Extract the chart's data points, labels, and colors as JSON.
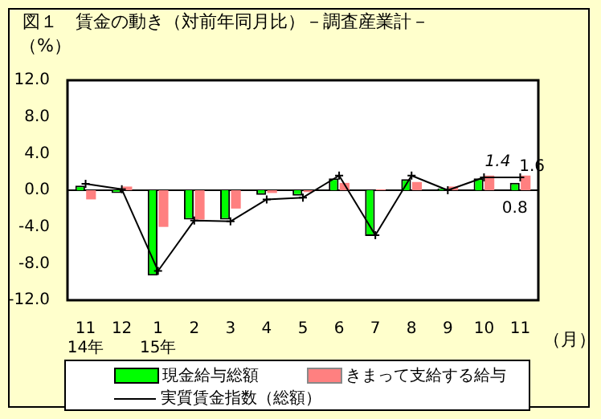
{
  "chart_data": {
    "type": "bar",
    "title": "図１　賃金の動き（対前年同月比）－調査産業計－",
    "ylabel": "（%）",
    "xlabel": "（月）",
    "categories": [
      "11\n14年",
      "12",
      "1\n15年",
      "2",
      "3",
      "4",
      "5",
      "6",
      "7",
      "8",
      "9",
      "10",
      "11"
    ],
    "series": [
      {
        "name": "現金給与総額",
        "color": "#00ff00",
        "values": [
          0.5,
          -0.3,
          -9.3,
          -3.2,
          -3.2,
          -0.5,
          -0.6,
          1.3,
          -5.0,
          1.2,
          0.2,
          1.3,
          0.8
        ],
        "value_labels": [
          null,
          null,
          null,
          null,
          null,
          null,
          null,
          null,
          null,
          null,
          null,
          null,
          "0.8"
        ]
      },
      {
        "name": "きまって支給する給与",
        "color": "#ff8080",
        "values": [
          -1.0,
          0.4,
          -4.0,
          -3.2,
          -2.0,
          -0.3,
          -0.2,
          0.8,
          0.1,
          0.9,
          0.4,
          1.6,
          1.6
        ],
        "value_labels": [
          null,
          null,
          null,
          null,
          null,
          null,
          null,
          null,
          null,
          null,
          null,
          null,
          "1.6"
        ]
      },
      {
        "name": "実質賃金指数（総額）",
        "type": "line",
        "color": "#000000",
        "marker": "cross",
        "values": [
          0.7,
          0.1,
          -8.8,
          -3.3,
          -3.4,
          -1.0,
          -0.8,
          1.6,
          -4.9,
          1.6,
          0.0,
          1.4,
          1.4
        ],
        "value_labels": [
          null,
          null,
          null,
          null,
          null,
          null,
          null,
          null,
          null,
          null,
          null,
          null,
          "1.4"
        ]
      }
    ],
    "ylim": [
      -12,
      12
    ],
    "yticks": [
      {
        "value": -12,
        "label": "-12.0"
      },
      {
        "value": -8,
        "label": "-8.0"
      },
      {
        "value": -4,
        "label": "-4.0"
      },
      {
        "value": 0,
        "label": "0.0"
      },
      {
        "value": 4,
        "label": "4.0"
      },
      {
        "value": 8,
        "label": "8.0"
      },
      {
        "value": 12,
        "label": "12.0"
      }
    ],
    "legend": "bottom"
  }
}
